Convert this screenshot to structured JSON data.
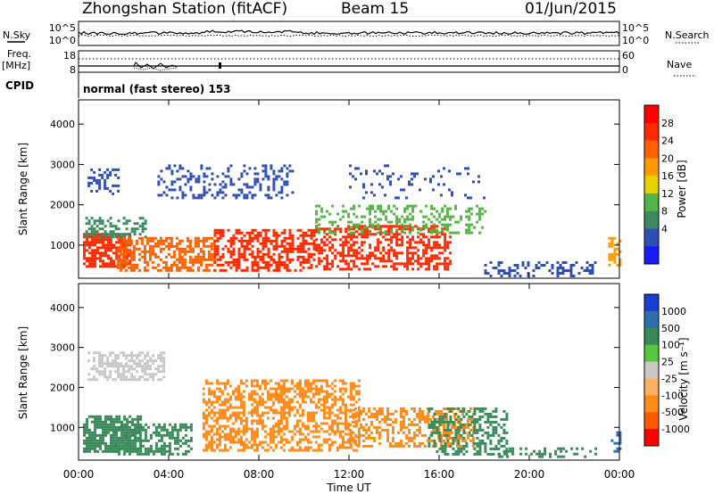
{
  "header": {
    "station": "Zhongshan Station (fitACF)",
    "beam": "Beam 15",
    "date": "01/Jun/2015"
  },
  "nsky_panel": {
    "left_label": "N.Sky",
    "right_label": "N.Search",
    "left_ticks": [
      "10^5",
      "10^0"
    ],
    "right_ticks": [
      "10^5",
      "10^0"
    ]
  },
  "freq_panel": {
    "left_label": "Freq.",
    "left_unit": "[MHz]",
    "right_label": "Nave",
    "left_ticks": [
      "18",
      "8"
    ],
    "right_ticks": [
      "60",
      "0"
    ]
  },
  "cpid": {
    "label": "CPID",
    "program": "normal (fast stereo) 153"
  },
  "chart_data": [
    {
      "type": "heatmap",
      "panel": "power",
      "ylabel": "Slant Range [km]",
      "yticks": [
        1000,
        2000,
        3000,
        4000
      ],
      "ylim": [
        180,
        4600
      ],
      "colorbar": {
        "label": "Power [dB]",
        "ticks": [
          4,
          8,
          12,
          16,
          20,
          24,
          28
        ],
        "colors": [
          "#1a1aff",
          "#2f4fb4",
          "#3d8a5e",
          "#55b446",
          "#e6d200",
          "#ff9a00",
          "#ff6000",
          "#ff2a00",
          "#ff0000"
        ]
      },
      "blobs": [
        {
          "t": [
            0.2,
            2.3
          ],
          "r": [
            450,
            1300
          ],
          "c": "#ff2a00",
          "d": 0.8
        },
        {
          "t": [
            0.3,
            3.0
          ],
          "r": [
            1200,
            1700
          ],
          "c": "#3d8a5e",
          "d": 0.45
        },
        {
          "t": [
            0.4,
            1.8
          ],
          "r": [
            2300,
            2900
          ],
          "c": "#2f4fb4",
          "d": 0.35
        },
        {
          "t": [
            1.7,
            6.0
          ],
          "r": [
            400,
            1200
          ],
          "c": "#ff6000",
          "d": 0.6
        },
        {
          "t": [
            3.5,
            9.5
          ],
          "r": [
            2200,
            3000
          ],
          "c": "#2f4fb4",
          "d": 0.3
        },
        {
          "t": [
            6.0,
            10.5
          ],
          "r": [
            350,
            1400
          ],
          "c": "#ff2a00",
          "d": 0.55
        },
        {
          "t": [
            10.5,
            16.5
          ],
          "r": [
            400,
            1500
          ],
          "c": "#ff2a00",
          "d": 0.55
        },
        {
          "t": [
            10.5,
            18.0
          ],
          "r": [
            1300,
            2000
          ],
          "c": "#55b446",
          "d": 0.35
        },
        {
          "t": [
            12.0,
            18.0
          ],
          "r": [
            2200,
            3000
          ],
          "c": "#2f4fb4",
          "d": 0.12
        },
        {
          "t": [
            18.0,
            23.0
          ],
          "r": [
            250,
            600
          ],
          "c": "#2f4fb4",
          "d": 0.35
        },
        {
          "t": [
            23.5,
            24.0
          ],
          "r": [
            500,
            1200
          ],
          "c": "#ff9a00",
          "d": 0.5
        }
      ]
    },
    {
      "type": "heatmap",
      "panel": "velocity",
      "ylabel": "Slant Range [km]",
      "xlabel": "Time UT",
      "yticks": [
        1000,
        2000,
        3000,
        4000
      ],
      "ylim": [
        180,
        4600
      ],
      "xlim": [
        0,
        24
      ],
      "xtick_labels": [
        "00:00",
        "04:00",
        "08:00",
        "12:00",
        "16:00",
        "20:00",
        "00:00"
      ],
      "colorbar": {
        "label": "Velocity [m s⁻¹]",
        "ticks": [
          -1000,
          -500,
          -100,
          -25,
          25,
          100,
          500,
          1000
        ],
        "colors": [
          "#ff0000",
          "#ff5a00",
          "#ff8c1a",
          "#ffb060",
          "#c8c8c8",
          "#55c840",
          "#3a8a5a",
          "#2f6fb0",
          "#1a3fd0"
        ]
      },
      "blobs": [
        {
          "t": [
            0.2,
            2.8
          ],
          "r": [
            400,
            1300
          ],
          "c": "#3a8a5a",
          "d": 0.75
        },
        {
          "t": [
            0.4,
            3.8
          ],
          "r": [
            2200,
            2900
          ],
          "c": "#c8c8c8",
          "d": 0.55
        },
        {
          "t": [
            1.5,
            5.0
          ],
          "r": [
            300,
            1100
          ],
          "c": "#3a8a5a",
          "d": 0.5
        },
        {
          "t": [
            5.5,
            12.5
          ],
          "r": [
            400,
            2200
          ],
          "c": "#ff8c1a",
          "d": 0.55
        },
        {
          "t": [
            12.0,
            17.5
          ],
          "r": [
            500,
            1500
          ],
          "c": "#ff8c1a",
          "d": 0.45
        },
        {
          "t": [
            15.5,
            19.0
          ],
          "r": [
            300,
            1500
          ],
          "c": "#3a8a5a",
          "d": 0.45
        },
        {
          "t": [
            18.5,
            23.0
          ],
          "r": [
            250,
            500
          ],
          "c": "#3a8a5a",
          "d": 0.35
        },
        {
          "t": [
            23.5,
            24.0
          ],
          "r": [
            400,
            900
          ],
          "c": "#2f6fb0",
          "d": 0.45
        }
      ]
    }
  ]
}
